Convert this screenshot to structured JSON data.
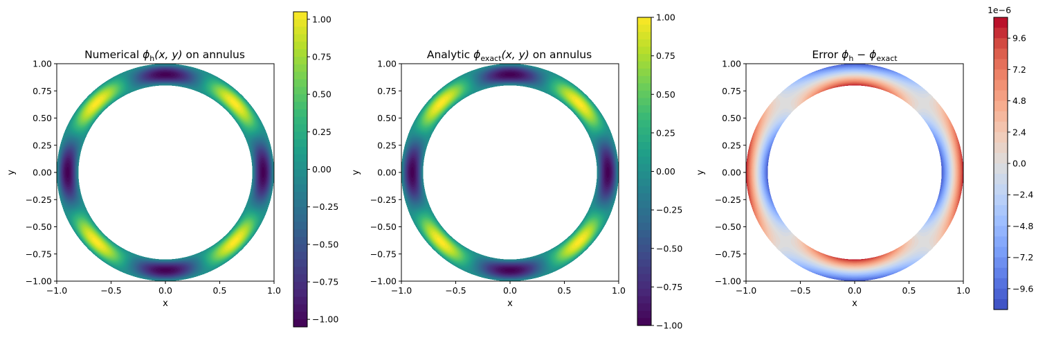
{
  "chart_data": [
    {
      "type": "heatmap",
      "title_parts": [
        "Numerical ",
        "ϕ",
        "h",
        "(x, y)",
        " on annulus"
      ],
      "xlabel": "x",
      "ylabel": "y",
      "xlim": [
        -1.0,
        1.0
      ],
      "ylim": [
        -1.0,
        1.0
      ],
      "xticks": [
        "−1.0",
        "−0.5",
        "0.0",
        "0.5",
        "1.0"
      ],
      "yticks": [
        "1.00",
        "0.75",
        "0.50",
        "0.25",
        "0.00",
        "−0.25",
        "−0.50",
        "−0.75",
        "−1.00"
      ],
      "domain": {
        "shape": "annulus",
        "inner_radius": 0.8,
        "outer_radius": 1.0
      },
      "field": "cos(4·θ + π)·sin(π·(r−0.8)/0.2) pattern",
      "colormap": "viridis",
      "colorbar": {
        "range": [
          -1.05,
          1.05
        ],
        "ticks": [
          "1.00",
          "0.75",
          "0.50",
          "0.25",
          "0.00",
          "−0.25",
          "−0.50",
          "−0.75",
          "−1.00"
        ],
        "tick_values": [
          1.0,
          0.75,
          0.5,
          0.25,
          0.0,
          -0.25,
          -0.5,
          -0.75,
          -1.0
        ],
        "offset_label": ""
      }
    },
    {
      "type": "heatmap",
      "title_parts": [
        "Analytic ",
        "ϕ",
        "exact",
        "(x, y)",
        " on annulus"
      ],
      "xlabel": "x",
      "ylabel": "y",
      "xlim": [
        -1.0,
        1.0
      ],
      "ylim": [
        -1.0,
        1.0
      ],
      "xticks": [
        "−1.0",
        "−0.5",
        "0.0",
        "0.5",
        "1.0"
      ],
      "yticks": [
        "1.00",
        "0.75",
        "0.50",
        "0.25",
        "0.00",
        "−0.25",
        "−0.50",
        "−0.75",
        "−1.00"
      ],
      "domain": {
        "shape": "annulus",
        "inner_radius": 0.8,
        "outer_radius": 1.0
      },
      "colormap": "viridis",
      "colorbar": {
        "range": [
          -1.0,
          1.0
        ],
        "ticks": [
          "1.00",
          "0.75",
          "0.50",
          "0.25",
          "0.00",
          "−0.25",
          "−0.50",
          "−0.75",
          "−1.00"
        ],
        "tick_values": [
          1.0,
          0.75,
          0.5,
          0.25,
          0.0,
          -0.25,
          -0.5,
          -0.75,
          -1.0
        ],
        "offset_label": ""
      }
    },
    {
      "type": "heatmap",
      "title_parts": [
        "Error ",
        "ϕ",
        "h",
        " − ",
        "ϕ",
        "exact"
      ],
      "xlabel": "x",
      "ylabel": "y",
      "xlim": [
        -1.0,
        1.0
      ],
      "ylim": [
        -1.0,
        1.0
      ],
      "xticks": [
        "−1.0",
        "−0.5",
        "0.0",
        "0.5",
        "1.0"
      ],
      "yticks": [
        "1.00",
        "0.75",
        "0.50",
        "0.25",
        "0.00",
        "−0.25",
        "−0.50",
        "−0.75",
        "−1.00"
      ],
      "domain": {
        "shape": "annulus",
        "inner_radius": 0.8,
        "outer_radius": 1.0
      },
      "colormap": "coolwarm",
      "colorbar": {
        "range": [
          -11.2,
          11.2
        ],
        "ticks": [
          "9.6",
          "7.2",
          "4.8",
          "2.4",
          "0.0",
          "−2.4",
          "−4.8",
          "−7.2",
          "−9.6"
        ],
        "tick_values": [
          9.6,
          7.2,
          4.8,
          2.4,
          0.0,
          -2.4,
          -4.8,
          -7.2,
          -9.6
        ],
        "offset_label": "1e−6"
      }
    }
  ]
}
